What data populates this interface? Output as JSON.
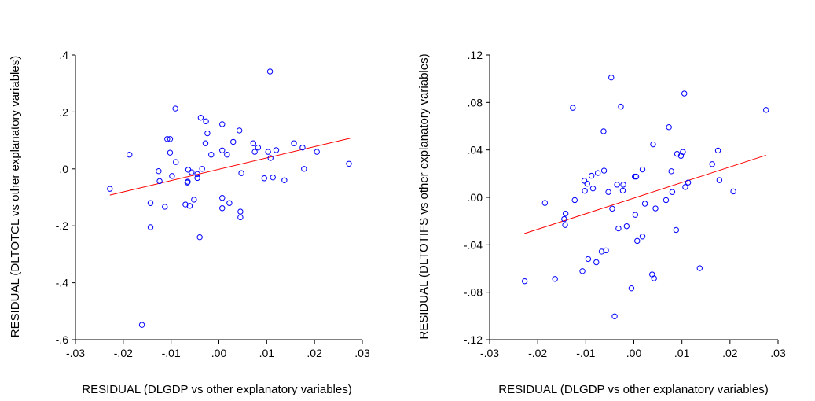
{
  "chart_data": [
    {
      "type": "scatter",
      "title": "",
      "xlabel": "RESIDUAL (DLGDP vs other explanatory variables)",
      "ylabel": "RESIDUAL (DLTOTCL vs other explanatory variables)",
      "xlim": [
        -0.03,
        0.03
      ],
      "ylim": [
        -0.6,
        0.4
      ],
      "x_ticks": [
        -0.03,
        -0.02,
        -0.01,
        0.0,
        0.01,
        0.02,
        0.03
      ],
      "x_tick_labels": [
        "-.03",
        "-.02",
        "-.01",
        ".00",
        ".01",
        ".02",
        ".03"
      ],
      "y_ticks": [
        -0.6,
        -0.4,
        -0.2,
        0.0,
        0.2,
        0.4
      ],
      "y_tick_labels": [
        "-.6",
        "-.4",
        "-.2",
        ".0",
        ".2",
        ".4"
      ],
      "point_color": "#0000ff",
      "line_color": "#ff0000",
      "fit_line": {
        "x": [
          -0.0228,
          0.0275
        ],
        "y": [
          -0.092,
          0.108
        ]
      },
      "points": [
        [
          -0.0228,
          -0.07
        ],
        [
          -0.0187,
          0.05
        ],
        [
          -0.0161,
          -0.548
        ],
        [
          -0.0143,
          -0.205
        ],
        [
          -0.0143,
          -0.12
        ],
        [
          -0.0126,
          -0.008
        ],
        [
          -0.0124,
          -0.043
        ],
        [
          -0.0113,
          -0.133
        ],
        [
          -0.0108,
          0.105
        ],
        [
          -0.0102,
          0.105
        ],
        [
          -0.0102,
          0.057
        ],
        [
          -0.0098,
          -0.025
        ],
        [
          -0.0091,
          0.212
        ],
        [
          -0.009,
          0.024
        ],
        [
          -0.007,
          -0.125
        ],
        [
          -0.0066,
          -0.048
        ],
        [
          -0.0065,
          -0.045
        ],
        [
          -0.0064,
          -0.003
        ],
        [
          -0.0061,
          -0.13
        ],
        [
          -0.0057,
          -0.012
        ],
        [
          -0.0052,
          -0.108
        ],
        [
          -0.0045,
          -0.032
        ],
        [
          -0.0045,
          -0.018
        ],
        [
          -0.004,
          -0.24
        ],
        [
          -0.0038,
          0.18
        ],
        [
          -0.0035,
          0.0
        ],
        [
          -0.0028,
          0.09
        ],
        [
          -0.0027,
          0.167
        ],
        [
          -0.0024,
          0.125
        ],
        [
          -0.0016,
          0.05
        ],
        [
          0.0007,
          0.157
        ],
        [
          0.0007,
          0.065
        ],
        [
          0.0007,
          -0.102
        ],
        [
          0.0007,
          -0.138
        ],
        [
          0.0017,
          0.05
        ],
        [
          0.0022,
          -0.12
        ],
        [
          0.003,
          0.095
        ],
        [
          0.0043,
          0.135
        ],
        [
          0.0045,
          -0.15
        ],
        [
          0.0045,
          -0.17
        ],
        [
          0.0047,
          -0.015
        ],
        [
          0.0072,
          0.09
        ],
        [
          0.0075,
          0.06
        ],
        [
          0.0082,
          0.075
        ],
        [
          0.0095,
          -0.033
        ],
        [
          0.0103,
          0.06
        ],
        [
          0.0107,
          0.342
        ],
        [
          0.0108,
          0.038
        ],
        [
          0.0113,
          -0.03
        ],
        [
          0.012,
          0.066
        ],
        [
          0.0137,
          -0.04
        ],
        [
          0.0157,
          0.09
        ],
        [
          0.0175,
          0.075
        ],
        [
          0.0178,
          0.0
        ],
        [
          0.0205,
          0.06
        ],
        [
          0.0272,
          0.018
        ]
      ]
    },
    {
      "type": "scatter",
      "title": "",
      "xlabel": "RESIDUAL (DLGDP vs other explanatory variables)",
      "ylabel": "RESIDUAL (DLTOTIFS vs other explanatory variables)",
      "xlim": [
        -0.03,
        0.03
      ],
      "ylim": [
        -0.12,
        0.12
      ],
      "x_ticks": [
        -0.03,
        -0.02,
        -0.01,
        0.0,
        0.01,
        0.02,
        0.03
      ],
      "x_tick_labels": [
        "-.03",
        "-.02",
        "-.01",
        ".00",
        ".01",
        ".02",
        ".03"
      ],
      "y_ticks": [
        -0.12,
        -0.08,
        -0.04,
        0.0,
        0.04,
        0.08,
        0.12
      ],
      "y_tick_labels": [
        "-.12",
        "-.08",
        "-.04",
        ".00",
        ".04",
        ".08",
        ".12"
      ],
      "point_color": "#0000ff",
      "line_color": "#ff0000",
      "fit_line": {
        "x": [
          -0.0228,
          0.0275
        ],
        "y": [
          -0.0306,
          0.0355
        ]
      },
      "points": [
        [
          -0.0227,
          -0.0707
        ],
        [
          -0.0185,
          -0.0047
        ],
        [
          -0.0164,
          -0.0688
        ],
        [
          -0.0145,
          -0.0183
        ],
        [
          -0.0143,
          -0.0233
        ],
        [
          -0.0142,
          -0.0137
        ],
        [
          -0.0127,
          0.0755
        ],
        [
          -0.0123,
          -0.0023
        ],
        [
          -0.0107,
          -0.0622
        ],
        [
          -0.0103,
          0.014
        ],
        [
          -0.0102,
          0.0055
        ],
        [
          -0.0097,
          0.0115
        ],
        [
          -0.0095,
          -0.052
        ],
        [
          -0.0088,
          0.0182
        ],
        [
          -0.0085,
          0.0075
        ],
        [
          -0.0078,
          -0.0547
        ],
        [
          -0.0075,
          0.0205
        ],
        [
          -0.0067,
          -0.0457
        ],
        [
          -0.0063,
          0.0557
        ],
        [
          -0.0062,
          0.0225
        ],
        [
          -0.0058,
          -0.0447
        ],
        [
          -0.0053,
          0.0045
        ],
        [
          -0.0047,
          0.101
        ],
        [
          -0.0045,
          -0.0095
        ],
        [
          -0.004,
          -0.1003
        ],
        [
          -0.0035,
          0.0107
        ],
        [
          -0.0032,
          -0.0262
        ],
        [
          -0.0027,
          0.0765
        ],
        [
          -0.0023,
          0.0057
        ],
        [
          -0.0022,
          0.0107
        ],
        [
          -0.0015,
          -0.0243
        ],
        [
          -0.0005,
          -0.0767
        ],
        [
          0.0002,
          0.0175
        ],
        [
          0.0003,
          -0.0147
        ],
        [
          0.0005,
          0.0175
        ],
        [
          0.0007,
          -0.0367
        ],
        [
          0.0018,
          -0.033
        ],
        [
          0.0018,
          0.0235
        ],
        [
          0.0023,
          -0.0053
        ],
        [
          0.0038,
          -0.065
        ],
        [
          0.004,
          0.0447
        ],
        [
          0.0042,
          -0.0683
        ],
        [
          0.0045,
          -0.0093
        ],
        [
          0.0067,
          -0.0023
        ],
        [
          0.0073,
          0.0592
        ],
        [
          0.0078,
          0.022
        ],
        [
          0.008,
          0.0045
        ],
        [
          0.0088,
          -0.0275
        ],
        [
          0.009,
          0.0367
        ],
        [
          0.0098,
          0.035
        ],
        [
          0.0102,
          0.0383
        ],
        [
          0.0105,
          0.0875
        ],
        [
          0.0107,
          0.0087
        ],
        [
          0.0113,
          0.0125
        ],
        [
          0.0137,
          -0.0597
        ],
        [
          0.0163,
          0.028
        ],
        [
          0.0175,
          0.0395
        ],
        [
          0.0178,
          0.0145
        ],
        [
          0.0207,
          0.005
        ],
        [
          0.0275,
          0.0737
        ]
      ]
    }
  ]
}
